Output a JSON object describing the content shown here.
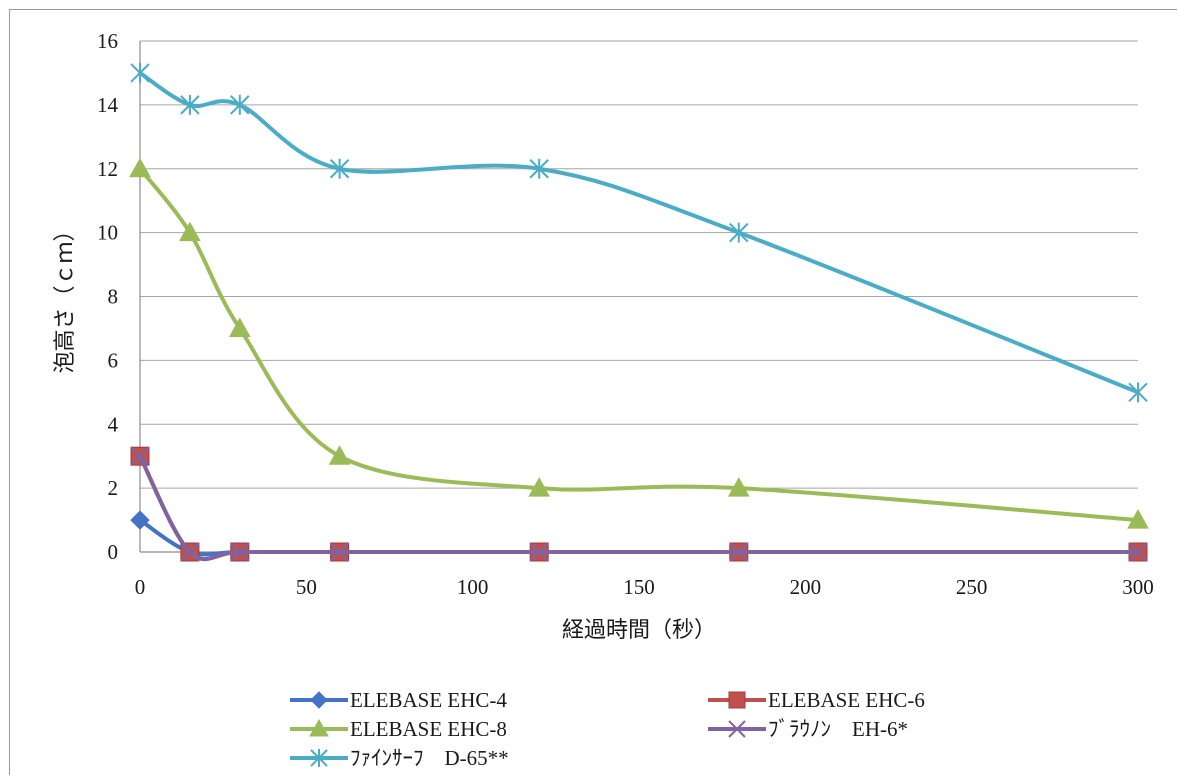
{
  "chart_data": {
    "type": "line",
    "title": "",
    "xlabel": "経過時間（秒）",
    "ylabel": "泡高さ（ｃｍ）",
    "xlim": [
      0,
      300
    ],
    "ylim": [
      0,
      16
    ],
    "x_ticks": [
      "0",
      "50",
      "100",
      "150",
      "200",
      "250",
      "300"
    ],
    "y_ticks": [
      "0",
      "2",
      "4",
      "6",
      "8",
      "10",
      "12",
      "14",
      "16"
    ],
    "grid": "horizontal",
    "legend_position": "bottom",
    "smooth": true,
    "x": [
      0,
      15,
      30,
      60,
      120,
      180,
      300
    ],
    "series": [
      {
        "name": "ELEBASE EHC-4",
        "values": [
          1,
          0,
          0,
          0,
          0,
          0,
          0
        ],
        "color": "#4472c4",
        "marker": "diamond"
      },
      {
        "name": "ELEBASE EHC-6",
        "values": [
          3,
          0,
          0,
          0,
          0,
          0,
          0
        ],
        "color": "#c0504d",
        "marker": "square"
      },
      {
        "name": "ELEBASE EHC-8",
        "values": [
          12,
          10,
          7,
          3,
          2,
          2,
          1
        ],
        "color": "#9bbb59",
        "marker": "triangle"
      },
      {
        "name": "ﾌﾞﾗｳﾉﾝ　EH-6*",
        "values": [
          3,
          0,
          0,
          0,
          0,
          0,
          0
        ],
        "color": "#8064a2",
        "marker": "x"
      },
      {
        "name": "ﾌｧｲﾝｻｰﾌ　D-65**",
        "values": [
          15,
          14,
          14,
          12,
          12,
          10,
          5
        ],
        "color": "#4bacc6",
        "marker": "star"
      }
    ]
  }
}
